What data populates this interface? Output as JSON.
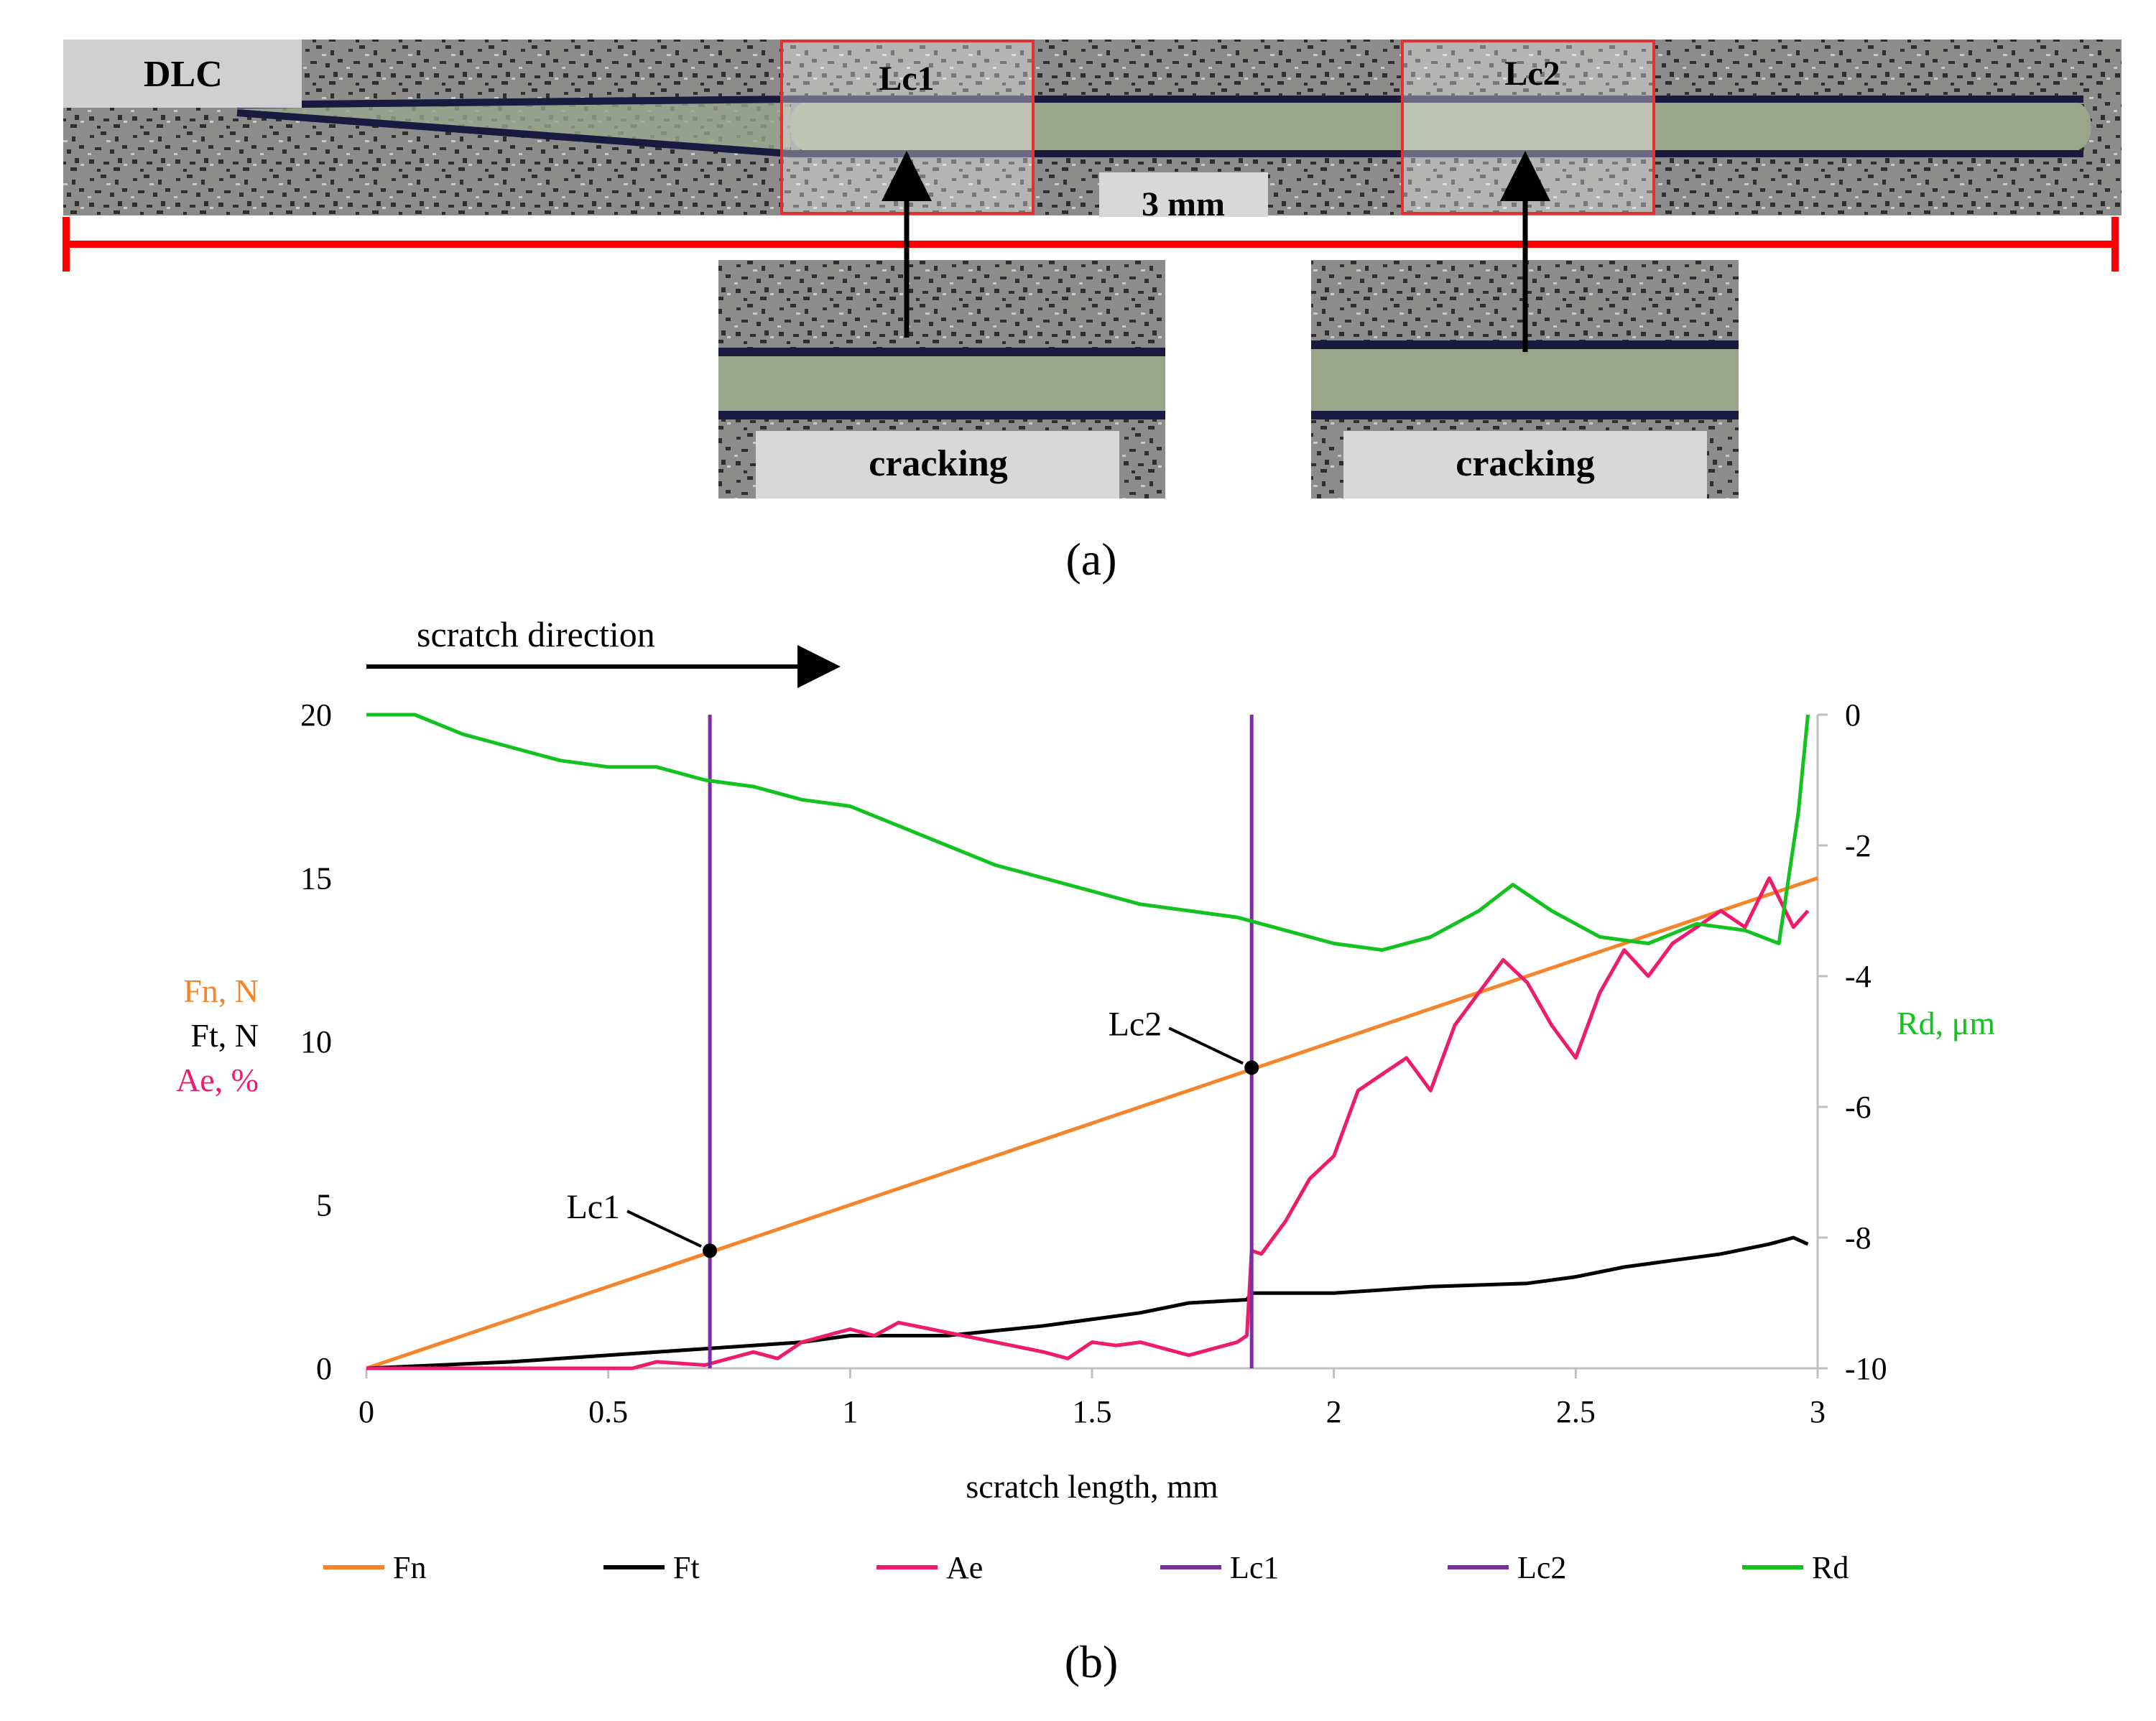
{
  "panel_a": {
    "caption": "(a)",
    "coating_label": "DLC",
    "length_label": "3 mm",
    "box1_label": "Lc1",
    "box2_label": "Lc2",
    "inset1_label": "cracking",
    "inset2_label": "cracking"
  },
  "panel_b": {
    "caption": "(b)",
    "scratch_direction": "scratch direction"
  },
  "colors": {
    "fn": "#f5842a",
    "ft": "#000000",
    "ae": "#ee1c6a",
    "lc": "#7a2ea0",
    "rd": "#12c320",
    "scale": "#ff0000"
  },
  "chart_data": {
    "type": "line",
    "xlabel": "scratch length, mm",
    "x_ticks": [
      "0",
      "0.5",
      "1",
      "1.5",
      "2",
      "2.5",
      "3"
    ],
    "xlim": [
      0,
      3
    ],
    "ylabel_left": [
      "Fn, N",
      "Ft, N",
      "Ae, %"
    ],
    "ylim_left": [
      0,
      20
    ],
    "y_ticks_left": [
      "0",
      "5",
      "10",
      "15",
      "20"
    ],
    "ylabel_right": "Rd, μm",
    "ylim_right": [
      -10,
      0
    ],
    "y_ticks_right": [
      "0",
      "-2",
      "-4",
      "-6",
      "-8",
      "-10"
    ],
    "legend": [
      "Fn",
      "Ft",
      "Ae",
      "Lc1",
      "Lc2",
      "Rd"
    ],
    "legend_position": "bottom",
    "series": [
      {
        "name": "Fn",
        "axis": "left",
        "x": [
          0,
          3
        ],
        "y": [
          0,
          15
        ]
      },
      {
        "name": "Ft",
        "axis": "left",
        "x": [
          0,
          0.3,
          0.5,
          0.7,
          0.9,
          1.0,
          1.2,
          1.4,
          1.6,
          1.7,
          1.82,
          1.83,
          2.0,
          2.2,
          2.4,
          2.5,
          2.6,
          2.7,
          2.8,
          2.9,
          2.95,
          2.98
        ],
        "y": [
          0,
          0.2,
          0.4,
          0.6,
          0.8,
          1.0,
          1.0,
          1.3,
          1.7,
          2.0,
          2.1,
          2.3,
          2.3,
          2.5,
          2.6,
          2.8,
          3.1,
          3.3,
          3.5,
          3.8,
          4.0,
          3.8
        ]
      },
      {
        "name": "Ae",
        "axis": "left",
        "x": [
          0,
          0.2,
          0.4,
          0.55,
          0.6,
          0.7,
          0.75,
          0.8,
          0.85,
          0.9,
          1.0,
          1.05,
          1.1,
          1.2,
          1.3,
          1.4,
          1.45,
          1.5,
          1.55,
          1.6,
          1.7,
          1.8,
          1.82,
          1.83,
          1.85,
          1.9,
          1.95,
          2.0,
          2.05,
          2.1,
          2.15,
          2.2,
          2.25,
          2.3,
          2.35,
          2.4,
          2.45,
          2.5,
          2.55,
          2.6,
          2.65,
          2.7,
          2.75,
          2.8,
          2.85,
          2.9,
          2.95,
          2.98
        ],
        "y": [
          0,
          0,
          0,
          0,
          0.2,
          0.1,
          0.3,
          0.5,
          0.3,
          0.8,
          1.2,
          1.0,
          1.4,
          1.1,
          0.8,
          0.5,
          0.3,
          0.8,
          0.7,
          0.8,
          0.4,
          0.8,
          1.0,
          3.6,
          3.5,
          4.5,
          5.8,
          6.5,
          8.5,
          9.0,
          9.5,
          8.5,
          10.5,
          11.5,
          12.5,
          11.8,
          10.5,
          9.5,
          11.5,
          12.8,
          12.0,
          13.0,
          13.5,
          14.0,
          13.5,
          15.0,
          13.5,
          14.0
        ]
      },
      {
        "name": "Lc1",
        "axis": "left",
        "x": [
          0.71,
          0.71
        ],
        "y": [
          0,
          20
        ]
      },
      {
        "name": "Lc2",
        "axis": "left",
        "x": [
          1.83,
          1.83
        ],
        "y": [
          0,
          20
        ]
      },
      {
        "name": "Rd",
        "axis": "right",
        "x": [
          0,
          0.1,
          0.2,
          0.3,
          0.4,
          0.5,
          0.6,
          0.7,
          0.8,
          0.9,
          1.0,
          1.1,
          1.2,
          1.3,
          1.4,
          1.5,
          1.6,
          1.7,
          1.8,
          1.9,
          2.0,
          2.1,
          2.2,
          2.3,
          2.37,
          2.45,
          2.55,
          2.65,
          2.75,
          2.85,
          2.92,
          2.96,
          2.98
        ],
        "y": [
          0,
          0,
          -0.3,
          -0.5,
          -0.7,
          -0.8,
          -0.8,
          -1.0,
          -1.1,
          -1.3,
          -1.4,
          -1.7,
          -2.0,
          -2.3,
          -2.5,
          -2.7,
          -2.9,
          -3.0,
          -3.1,
          -3.3,
          -3.5,
          -3.6,
          -3.4,
          -3.0,
          -2.6,
          -3.0,
          -3.4,
          -3.5,
          -3.2,
          -3.3,
          -3.5,
          -1.5,
          0
        ]
      }
    ],
    "annotations": [
      {
        "label": "Lc1",
        "x": 0.71,
        "y": 3.6
      },
      {
        "label": "Lc2",
        "x": 1.83,
        "y": 9.2
      }
    ]
  }
}
